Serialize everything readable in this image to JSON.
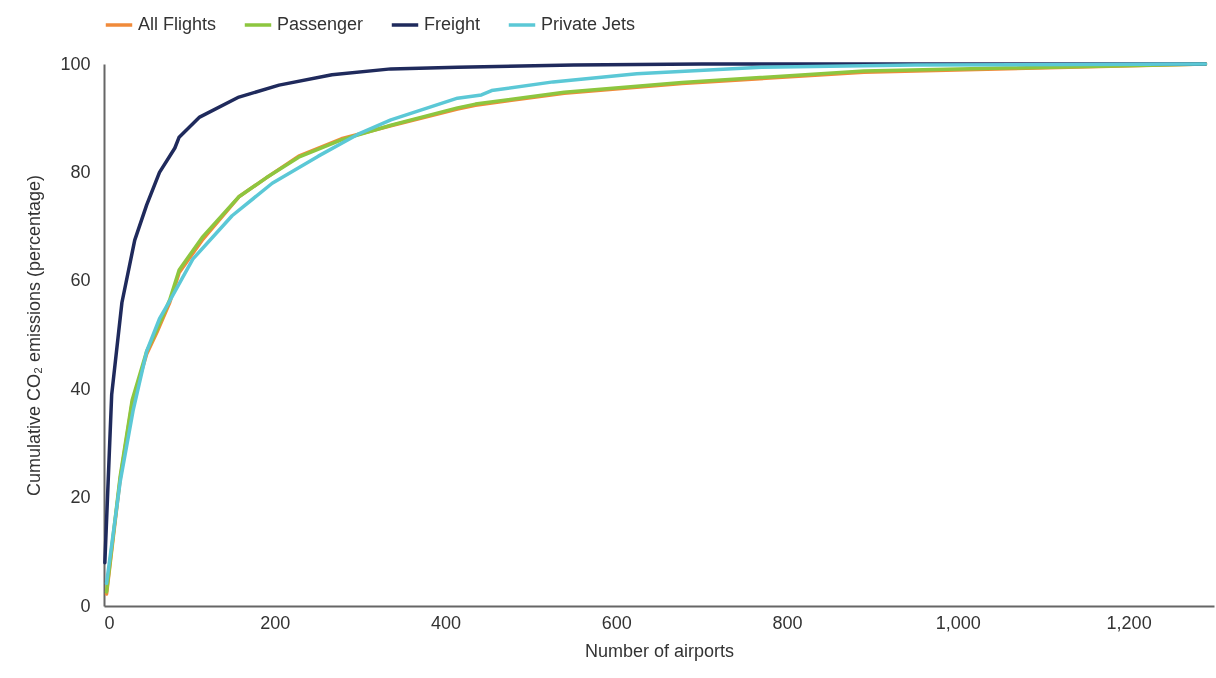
{
  "chart_data": {
    "type": "line",
    "xlabel": "Number of airports",
    "ylabel": "Cumulative CO₂ emissions (percentage)",
    "xlim": [
      0,
      1300
    ],
    "ylim": [
      0,
      100
    ],
    "xticks": [
      0,
      200,
      400,
      600,
      800,
      {
        "value": 1000,
        "label": "1,000"
      },
      {
        "value": 1200,
        "label": "1,200"
      }
    ],
    "yticks": [
      0,
      20,
      40,
      60,
      80,
      100
    ],
    "grid": false,
    "legend": "top left",
    "marker": "none",
    "line_style": "solid",
    "series": [
      {
        "name": "All Flights",
        "color": "#f08a3a",
        "x": [
          3,
          19,
          33,
          50,
          62,
          77,
          88,
          115,
          158,
          190,
          228,
          278,
          336,
          414,
          435,
          539,
          677,
          890,
          1290
        ],
        "values": [
          2.2,
          23.5,
          37.5,
          46.5,
          50.5,
          56,
          61.5,
          67.5,
          75.5,
          79,
          83,
          86.2,
          88.6,
          91.7,
          92.4,
          94.6,
          96.4,
          98.5,
          100
        ]
      },
      {
        "name": "Passenger",
        "color": "#8dc63f",
        "x": [
          3,
          19,
          33,
          50,
          62,
          77,
          88,
          115,
          158,
          190,
          228,
          278,
          336,
          414,
          435,
          539,
          677,
          890,
          1290
        ],
        "values": [
          2.6,
          24,
          38,
          47,
          51,
          56.5,
          62,
          68,
          75.5,
          79,
          82.8,
          86,
          88.7,
          91.9,
          92.6,
          94.8,
          96.6,
          98.7,
          100
        ]
      },
      {
        "name": "Freight",
        "color": "#1f2a5c",
        "x": [
          1,
          9,
          21,
          36,
          50,
          65,
          83,
          88,
          112,
          158,
          205,
          267,
          336,
          414,
          550,
          700,
          1290
        ],
        "values": [
          8,
          39,
          56,
          67.5,
          74,
          80,
          84.5,
          86.5,
          90.2,
          93.9,
          96.1,
          98,
          99.1,
          99.4,
          99.8,
          100,
          100
        ]
      },
      {
        "name": "Private Jets",
        "color": "#5bc8d6",
        "x": [
          3,
          19,
          34,
          50,
          65,
          76,
          104,
          150,
          197,
          251,
          297,
          336,
          414,
          442,
          454,
          526,
          624,
          770,
          950,
          1290
        ],
        "values": [
          4.2,
          23,
          36,
          47,
          53,
          56,
          64,
          72,
          78,
          83,
          87,
          89.7,
          93.7,
          94.3,
          95.1,
          96.7,
          98.2,
          99.4,
          99.8,
          100
        ]
      }
    ]
  }
}
